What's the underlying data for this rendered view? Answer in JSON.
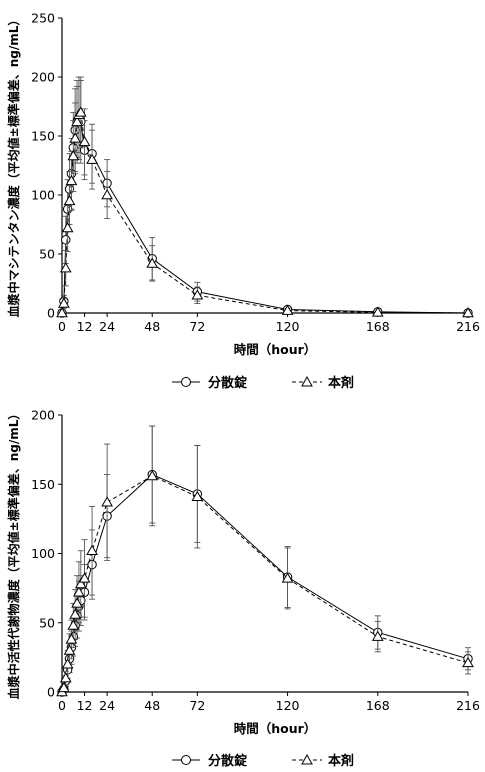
{
  "chart_data": [
    {
      "type": "line",
      "ylabel": "血漿中マシテンタン濃度（平均値±標準偏差、ng/mL）",
      "xlabel": "時間（hour）",
      "xlim": [
        0,
        216
      ],
      "ylim": [
        0,
        250
      ],
      "xticks": [
        0,
        12,
        24,
        48,
        72,
        120,
        168,
        216
      ],
      "yticks": [
        0,
        50,
        100,
        150,
        200,
        250
      ],
      "legend": "bottom-center",
      "series": [
        {
          "name": "分散錠",
          "marker": "circle",
          "line": "solid",
          "x": [
            0,
            1,
            2,
            3,
            4,
            5,
            6,
            7,
            8,
            9,
            10,
            12,
            16,
            24,
            48,
            72,
            120,
            168,
            216
          ],
          "y": [
            0,
            10,
            62,
            88,
            105,
            118,
            140,
            155,
            162,
            165,
            162,
            138,
            135,
            110,
            46,
            18,
            3,
            1,
            0
          ],
          "err": [
            0,
            5,
            20,
            25,
            30,
            30,
            30,
            35,
            35,
            35,
            35,
            25,
            25,
            20,
            18,
            8,
            2,
            1,
            0
          ]
        },
        {
          "name": "本剤",
          "marker": "triangle",
          "line": "dashed",
          "x": [
            0,
            1,
            2,
            3,
            4,
            5,
            6,
            7,
            8,
            9,
            10,
            12,
            16,
            24,
            48,
            72,
            120,
            168,
            216
          ],
          "y": [
            0,
            8,
            38,
            72,
            95,
            112,
            133,
            148,
            162,
            168,
            170,
            145,
            130,
            100,
            42,
            15,
            2,
            0.5,
            0
          ],
          "err": [
            0,
            4,
            15,
            20,
            25,
            25,
            30,
            30,
            30,
            32,
            30,
            28,
            25,
            20,
            15,
            7,
            2,
            0.5,
            0
          ]
        }
      ]
    },
    {
      "type": "line",
      "ylabel": "血漿中活性代謝物濃度（平均値±標準偏差、ng/mL）",
      "xlabel": "時間（hour）",
      "xlim": [
        0,
        216
      ],
      "ylim": [
        0,
        200
      ],
      "xticks": [
        0,
        12,
        24,
        48,
        72,
        120,
        168,
        216
      ],
      "yticks": [
        0,
        50,
        100,
        150,
        200
      ],
      "legend": "bottom-center",
      "series": [
        {
          "name": "分散錠",
          "marker": "circle",
          "line": "solid",
          "x": [
            0,
            1,
            2,
            3,
            4,
            5,
            6,
            7,
            8,
            9,
            10,
            12,
            16,
            24,
            48,
            72,
            120,
            168,
            216
          ],
          "y": [
            0,
            2,
            8,
            16,
            24,
            32,
            40,
            48,
            55,
            62,
            66,
            72,
            92,
            127,
            157,
            143,
            83,
            43,
            24
          ],
          "err": [
            0,
            1,
            4,
            8,
            10,
            12,
            14,
            15,
            16,
            18,
            18,
            20,
            25,
            30,
            35,
            35,
            22,
            12,
            8
          ]
        },
        {
          "name": "本剤",
          "marker": "triangle",
          "line": "dashed",
          "x": [
            0,
            1,
            2,
            3,
            4,
            5,
            6,
            7,
            8,
            9,
            10,
            12,
            16,
            24,
            48,
            72,
            120,
            168,
            216
          ],
          "y": [
            0,
            3,
            10,
            20,
            30,
            38,
            48,
            56,
            64,
            72,
            78,
            82,
            102,
            137,
            156,
            141,
            82,
            40,
            21
          ],
          "err": [
            0,
            2,
            5,
            10,
            12,
            14,
            16,
            18,
            20,
            22,
            24,
            28,
            32,
            42,
            36,
            37,
            22,
            11,
            8
          ]
        }
      ]
    }
  ]
}
